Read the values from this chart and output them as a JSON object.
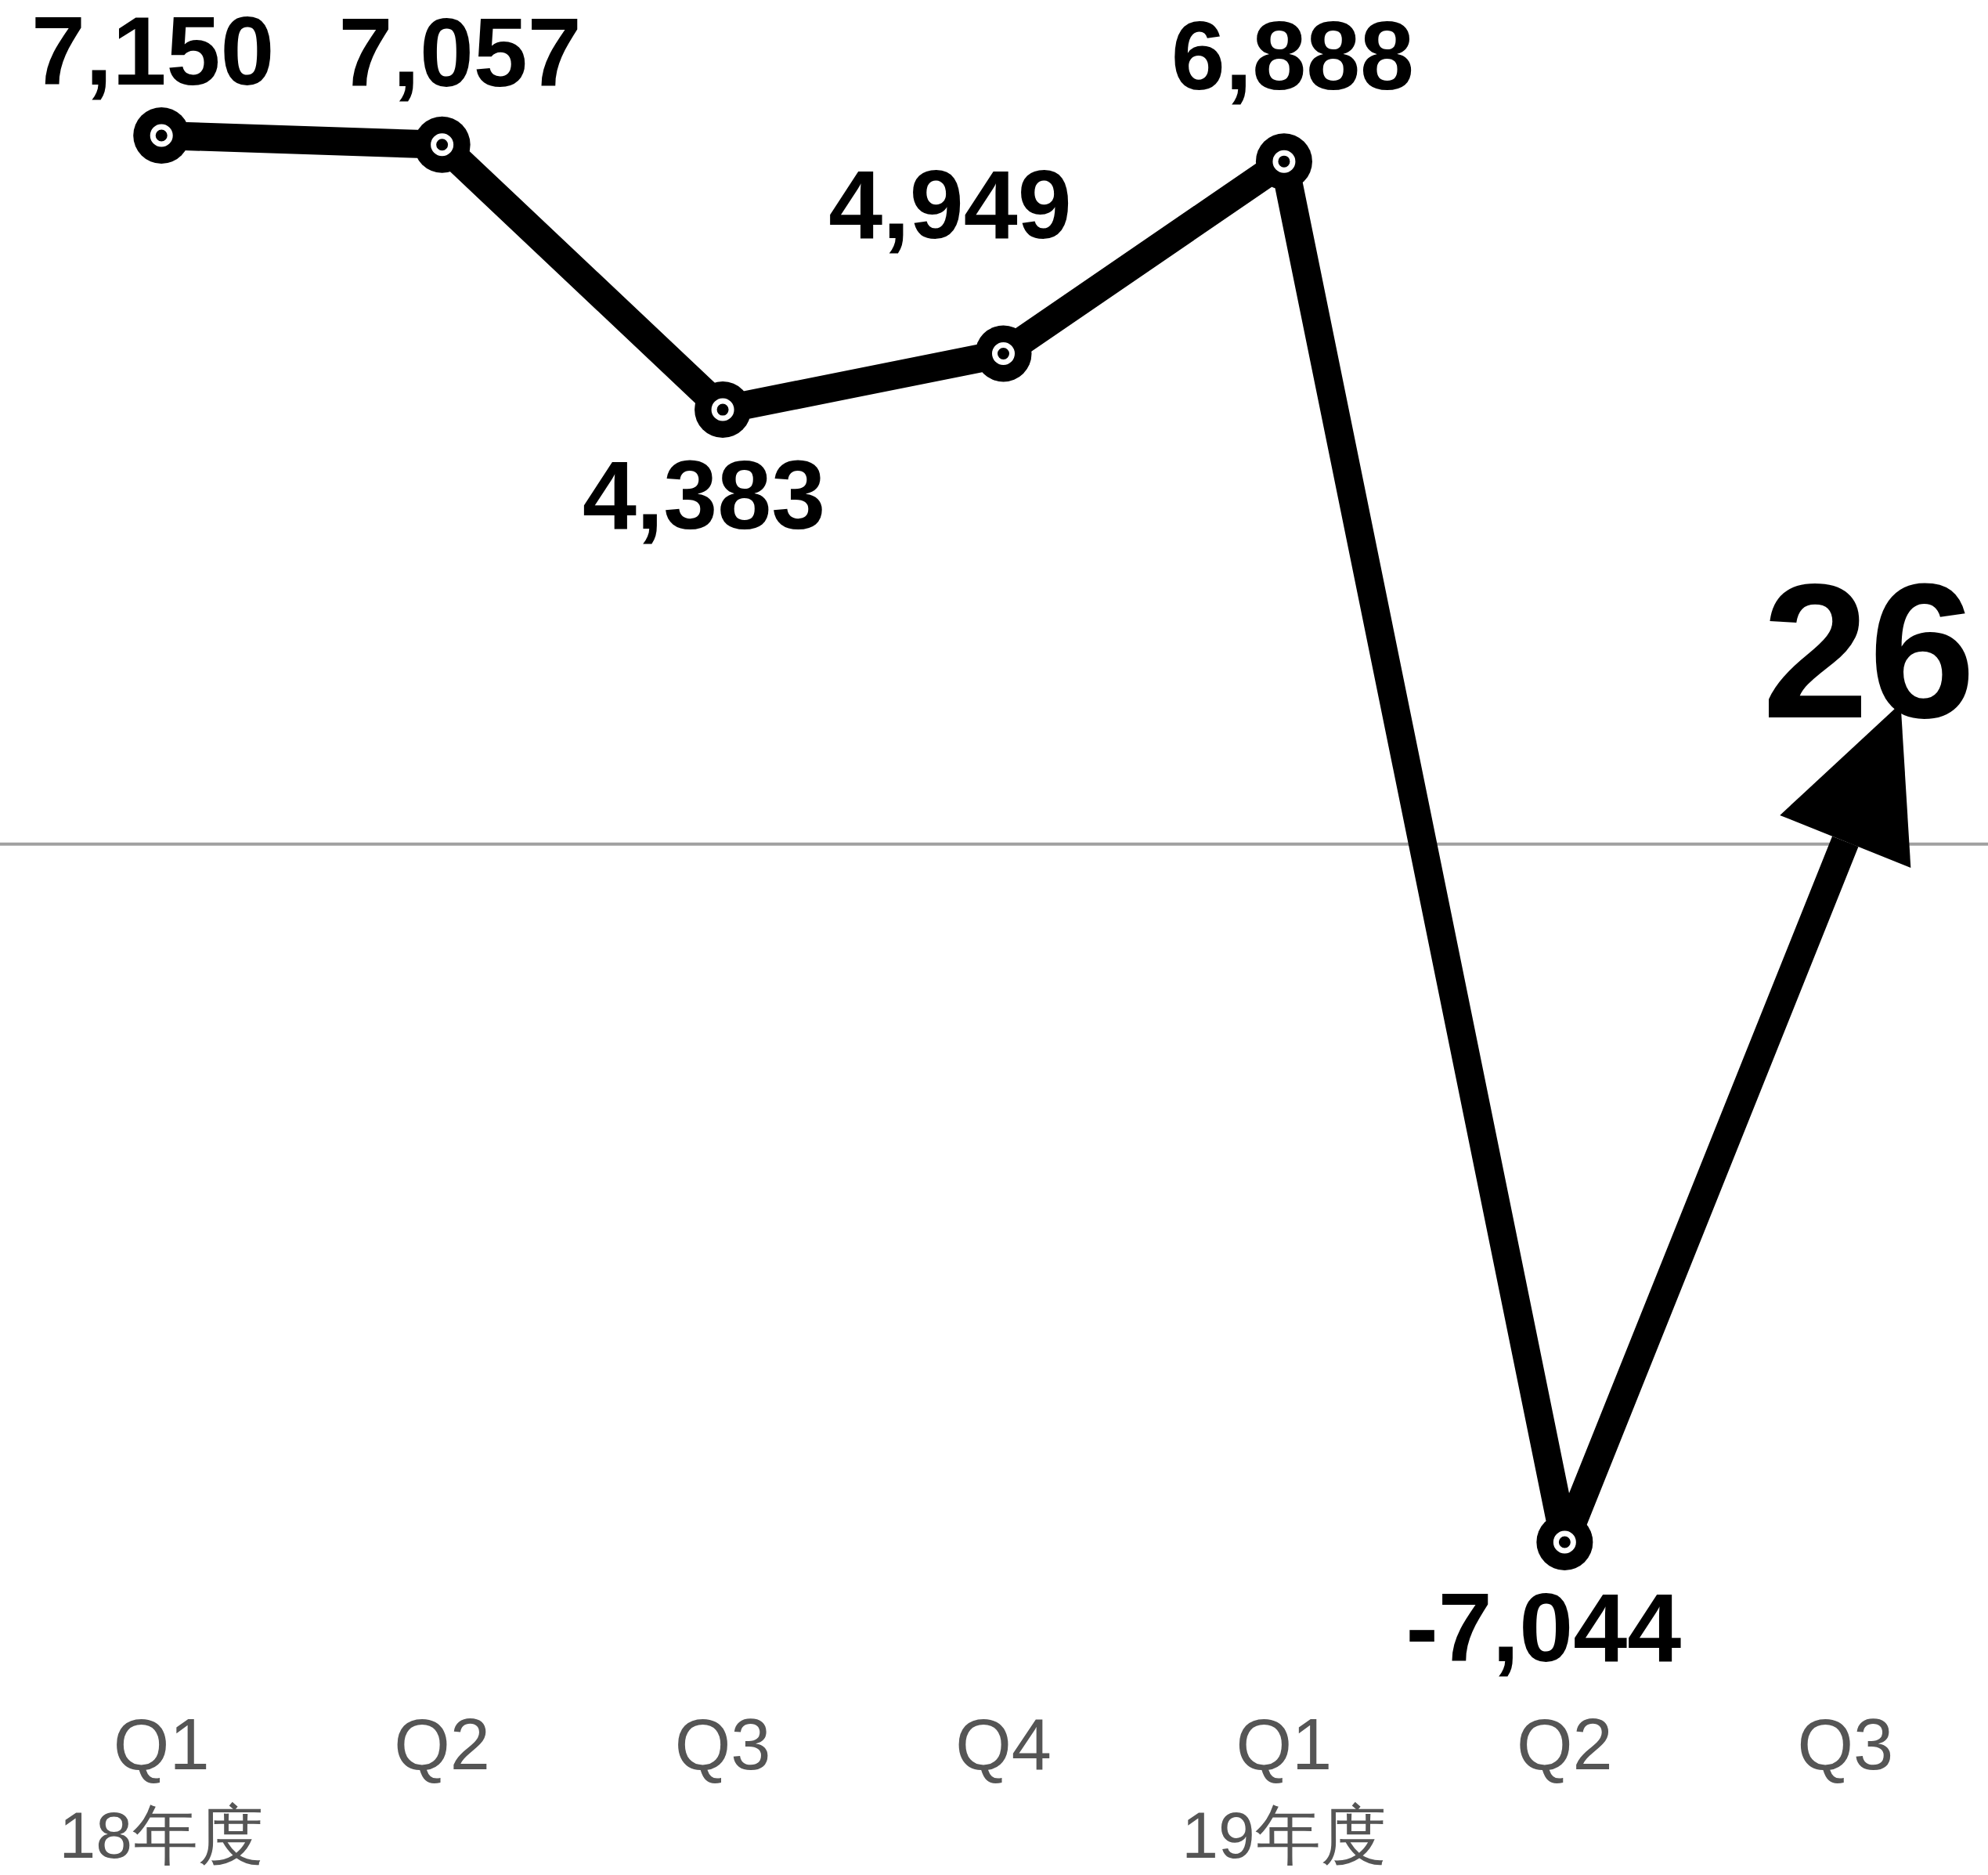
{
  "chart_data": {
    "type": "line",
    "categories": [
      "Q1",
      "Q2",
      "Q3",
      "Q4",
      "Q1",
      "Q2",
      "Q3"
    ],
    "values": [
      7150,
      7057,
      4383,
      4949,
      6888,
      -7044,
      26
    ],
    "value_labels": [
      "7,150",
      "7,057",
      "4,383",
      "4,949",
      "6,888",
      "-7,044",
      "26"
    ],
    "color": "#000000",
    "marker": "circle",
    "annotations": [
      "18年度",
      "19年度"
    ]
  }
}
